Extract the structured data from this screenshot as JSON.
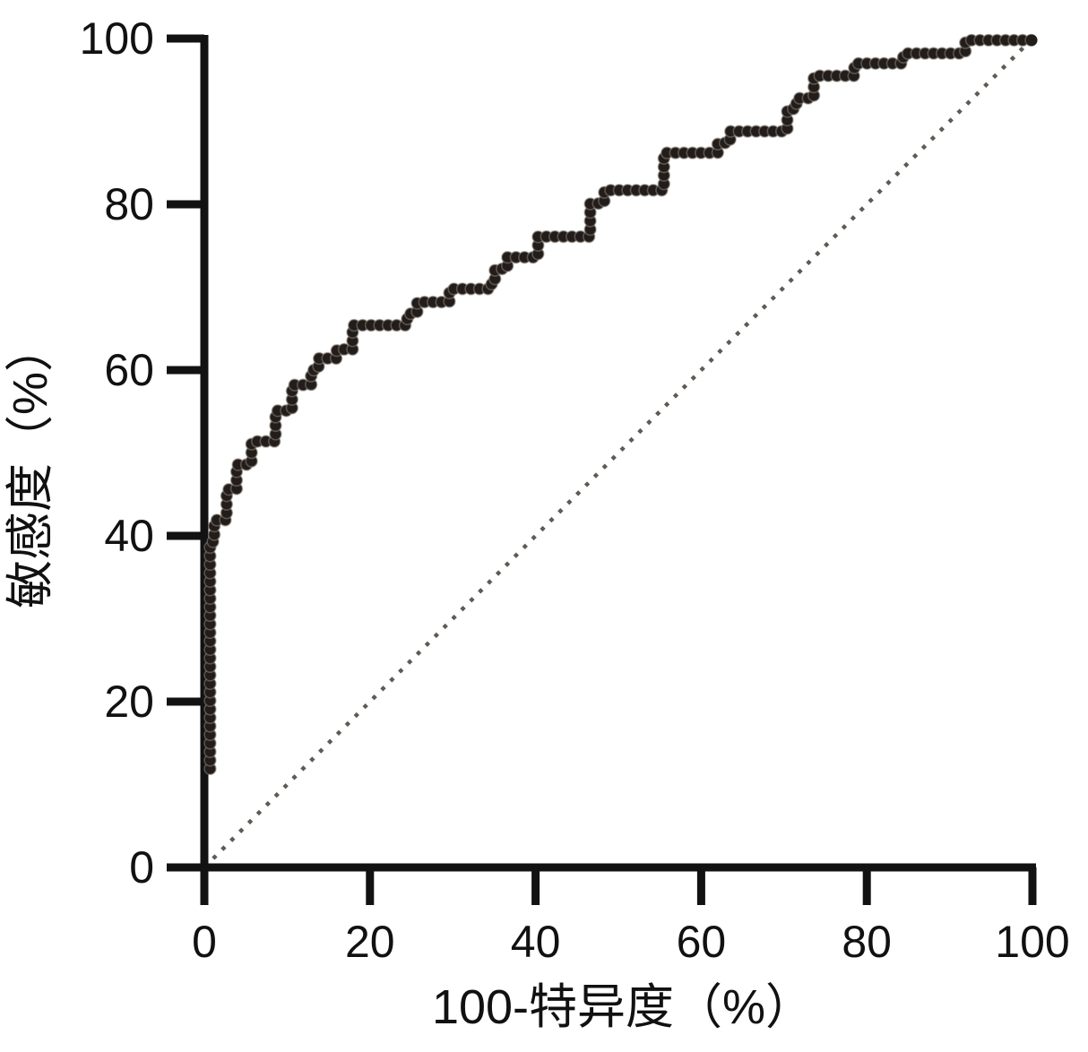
{
  "chart_data": {
    "type": "line",
    "subtype": "roc-step-curve",
    "title": "",
    "xlabel": "100-特异度（%）",
    "ylabel": "敏感度（%）",
    "xlim": [
      0,
      100
    ],
    "ylim": [
      0,
      100
    ],
    "x_ticks": [
      0,
      20,
      40,
      60,
      80,
      100
    ],
    "y_ticks": [
      0,
      20,
      40,
      60,
      80,
      100
    ],
    "grid": false,
    "legend": "none",
    "colors": {
      "curve": "#221d1a",
      "curve_dot_halo": "#8a8178",
      "axis": "#121212",
      "reference_line": "#5f5a55",
      "background": "#ffffff"
    },
    "series": [
      {
        "name": "ROC curve",
        "style": "stepped beaded dots",
        "color": "#221d1a",
        "points": [
          [
            0.7,
            11.9
          ],
          [
            0.7,
            39.3
          ],
          [
            1.2,
            39.3
          ],
          [
            1.2,
            41.9
          ],
          [
            2.7,
            41.9
          ],
          [
            2.7,
            45.6
          ],
          [
            3.9,
            45.6
          ],
          [
            3.9,
            48.6
          ],
          [
            5.7,
            48.6
          ],
          [
            5.7,
            51.4
          ],
          [
            8.6,
            51.4
          ],
          [
            8.6,
            55.1
          ],
          [
            10.6,
            55.1
          ],
          [
            10.6,
            58.2
          ],
          [
            12.9,
            58.2
          ],
          [
            12.9,
            60.0
          ],
          [
            13.8,
            60.0
          ],
          [
            13.8,
            61.4
          ],
          [
            16.0,
            61.4
          ],
          [
            16.0,
            62.5
          ],
          [
            17.9,
            62.5
          ],
          [
            17.9,
            65.4
          ],
          [
            24.5,
            65.4
          ],
          [
            24.5,
            66.8
          ],
          [
            25.7,
            66.8
          ],
          [
            25.7,
            68.2
          ],
          [
            29.6,
            68.2
          ],
          [
            29.6,
            69.8
          ],
          [
            34.7,
            69.8
          ],
          [
            34.7,
            71.0
          ],
          [
            35.1,
            71.0
          ],
          [
            35.1,
            72.2
          ],
          [
            36.6,
            72.2
          ],
          [
            36.6,
            73.6
          ],
          [
            40.3,
            73.6
          ],
          [
            40.3,
            76.1
          ],
          [
            46.6,
            76.1
          ],
          [
            46.6,
            80.1
          ],
          [
            48.3,
            80.1
          ],
          [
            48.3,
            81.7
          ],
          [
            55.5,
            81.7
          ],
          [
            55.5,
            86.2
          ],
          [
            62.0,
            86.2
          ],
          [
            62.0,
            87.4
          ],
          [
            63.5,
            87.4
          ],
          [
            63.5,
            88.8
          ],
          [
            70.4,
            88.8
          ],
          [
            70.4,
            91.5
          ],
          [
            71.5,
            91.5
          ],
          [
            71.5,
            92.8
          ],
          [
            73.6,
            92.8
          ],
          [
            73.6,
            95.5
          ],
          [
            78.5,
            95.5
          ],
          [
            78.5,
            97.0
          ],
          [
            84.4,
            97.0
          ],
          [
            84.4,
            98.2
          ],
          [
            91.9,
            98.2
          ],
          [
            91.9,
            99.8
          ],
          [
            99.9,
            99.8
          ]
        ]
      },
      {
        "name": "reference diagonal",
        "style": "dotted",
        "color": "#5f5a55",
        "points": [
          [
            0,
            0
          ],
          [
            100,
            100
          ]
        ]
      }
    ]
  }
}
